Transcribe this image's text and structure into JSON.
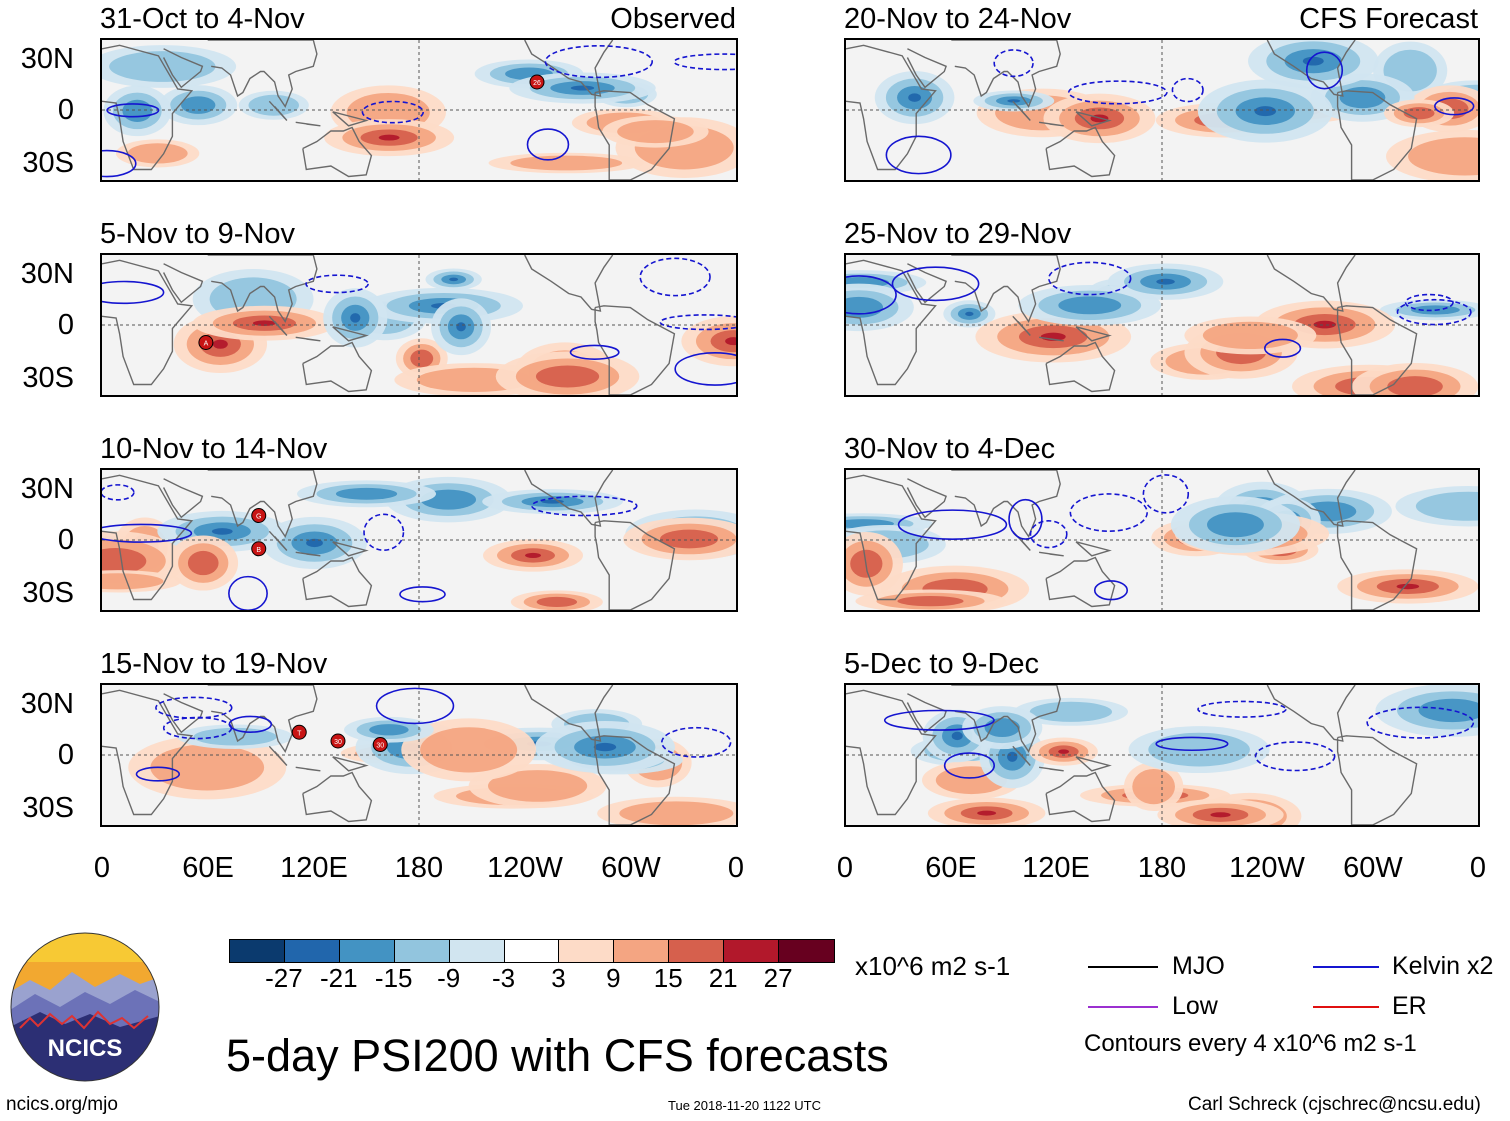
{
  "observed_label": "Observed",
  "forecast_label": "CFS Forecast",
  "panels": [
    {
      "title": "31-Oct to 4-Nov",
      "storms": [
        {
          "label": "26",
          "lon": 247,
          "lat": 16
        }
      ]
    },
    {
      "title": "5-Nov to 9-Nov",
      "storms": [
        {
          "label": "A",
          "lon": 59,
          "lat": -10
        }
      ]
    },
    {
      "title": "10-Nov to 14-Nov",
      "storms": [
        {
          "label": "G",
          "lon": 89,
          "lat": 14
        },
        {
          "label": "B",
          "lon": 89,
          "lat": -5
        }
      ]
    },
    {
      "title": "15-Nov to 19-Nov",
      "storms": [
        {
          "label": "T",
          "lon": 112,
          "lat": 13
        },
        {
          "label": "30",
          "lon": 134,
          "lat": 8
        },
        {
          "label": "30",
          "lon": 158,
          "lat": 6
        }
      ]
    },
    {
      "title": "20-Nov to 24-Nov",
      "storms": []
    },
    {
      "title": "25-Nov to 29-Nov",
      "storms": []
    },
    {
      "title": "30-Nov to 4-Dec",
      "storms": []
    },
    {
      "title": "5-Dec to 9-Dec",
      "storms": []
    }
  ],
  "lat_labels": [
    "30N",
    "0",
    "30S"
  ],
  "lon_labels": [
    "0",
    "60E",
    "120E",
    "180",
    "120W",
    "60W",
    "0"
  ],
  "colorbar": {
    "colors": [
      "#0b3a6e",
      "#2166ac",
      "#4393c3",
      "#92c5de",
      "#d1e5f0",
      "#ffffff",
      "#fddbc7",
      "#f4a582",
      "#d6604d",
      "#b2182b",
      "#67001f"
    ],
    "ticks": [
      "-27",
      "-21",
      "-15",
      "-9",
      "-3",
      "3",
      "9",
      "15",
      "21",
      "27"
    ],
    "units": "x10^6 m2 s-1"
  },
  "legend": {
    "items": [
      {
        "label": "MJO",
        "color": "#000000"
      },
      {
        "label": "Kelvin x2",
        "color": "#1515d0"
      },
      {
        "label": "Low",
        "color": "#9b30d0"
      },
      {
        "label": "ER",
        "color": "#e01010"
      }
    ],
    "note": "Contours every 4 x10^6 m2 s-1"
  },
  "logo_text": "NCICS",
  "main_title": "5-day PSI200 with CFS forecasts",
  "footer": {
    "left": "ncics.org/mjo",
    "center": "Tue 2018-11-20 1122 UTC",
    "right": "Carl Schreck (cjschrec@ncsu.edu)"
  }
}
